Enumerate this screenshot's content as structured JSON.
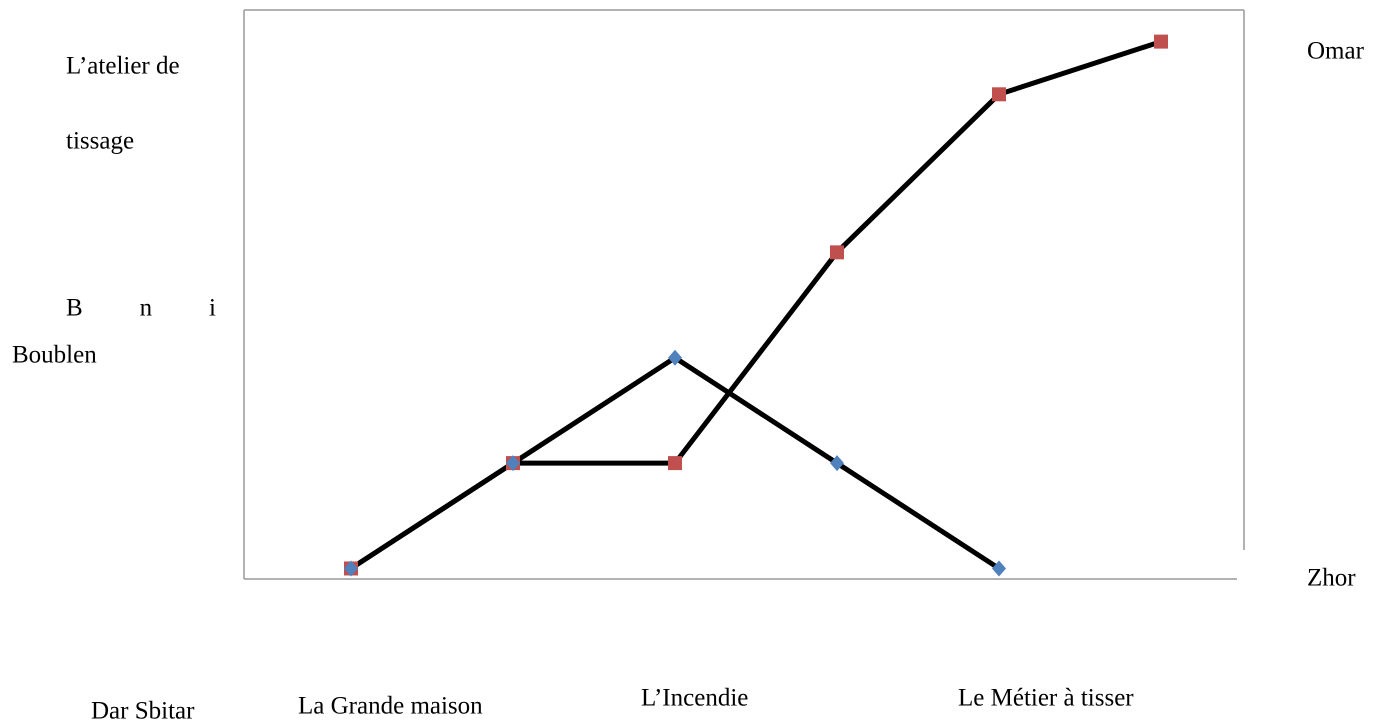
{
  "chart_data": {
    "type": "line",
    "categories": [
      null,
      null,
      null,
      null,
      null,
      null
    ],
    "series": [
      {
        "name": "Omar",
        "color": "#c0504d",
        "marker": "square",
        "values": [
          0,
          1,
          1,
          3,
          4.5,
          5
        ]
      },
      {
        "name": "Zhor",
        "color": "#4f81bd",
        "marker": "diamond",
        "values": [
          0,
          1,
          2,
          1,
          0,
          null
        ]
      }
    ],
    "line_color": "#000000",
    "ylim": [
      -0.1,
      5.3
    ],
    "annotations": [
      "L’atelier de",
      "tissage",
      "B n i",
      "Boublen",
      "Dar Sbitar",
      "La Grande maison",
      "L’Incendie",
      "Le Métier à tisser"
    ]
  }
}
